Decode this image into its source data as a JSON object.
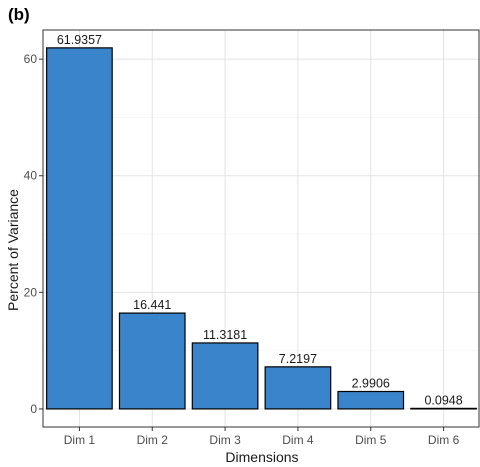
{
  "chart_data": {
    "type": "bar",
    "panel_label": "(b)",
    "title": "",
    "xlabel": "Dimensions",
    "ylabel": "Percent of Variance",
    "categories": [
      "Dim 1",
      "Dim 2",
      "Dim 3",
      "Dim 4",
      "Dim 5",
      "Dim 6"
    ],
    "values": [
      61.9357,
      16.441,
      11.3181,
      7.2197,
      2.9906,
      0.0948
    ],
    "data_labels": [
      "61.9357",
      "16.441",
      "11.3181",
      "7.2197",
      "2.9906",
      "0.0948"
    ],
    "ylim": [
      -3.1,
      65
    ],
    "yticks": [
      0,
      20,
      40,
      60
    ],
    "grid": true,
    "bar_color": "#3a84cc",
    "bar_edge_color": "#000000"
  }
}
